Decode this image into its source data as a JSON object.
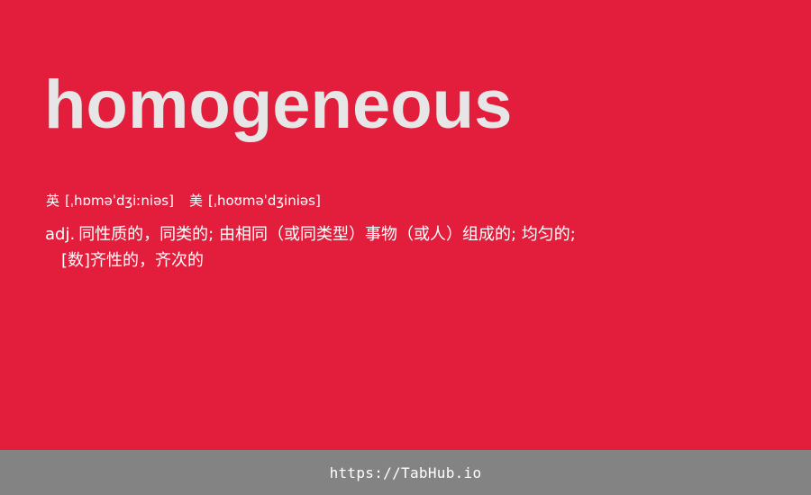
{
  "entry": {
    "word": "homogeneous",
    "phonetics": {
      "uk_label": "英",
      "uk_ipa": "[ˌhɒməˈdʒiːniəs]",
      "us_label": "美",
      "us_ipa": "[ˌhoʊməˈdʒiniəs]"
    },
    "definition": {
      "pos": "adj.",
      "line1": "同性质的，同类的; 由相同（或同类型）事物（或人）组成的; 均匀的;",
      "line2": "[数]齐性的，齐次的"
    }
  },
  "footer": {
    "link": "https://TabHub.io"
  },
  "colors": {
    "background": "#e21e3c",
    "word": "#e6e6e6",
    "footer_bg": "#838383"
  }
}
